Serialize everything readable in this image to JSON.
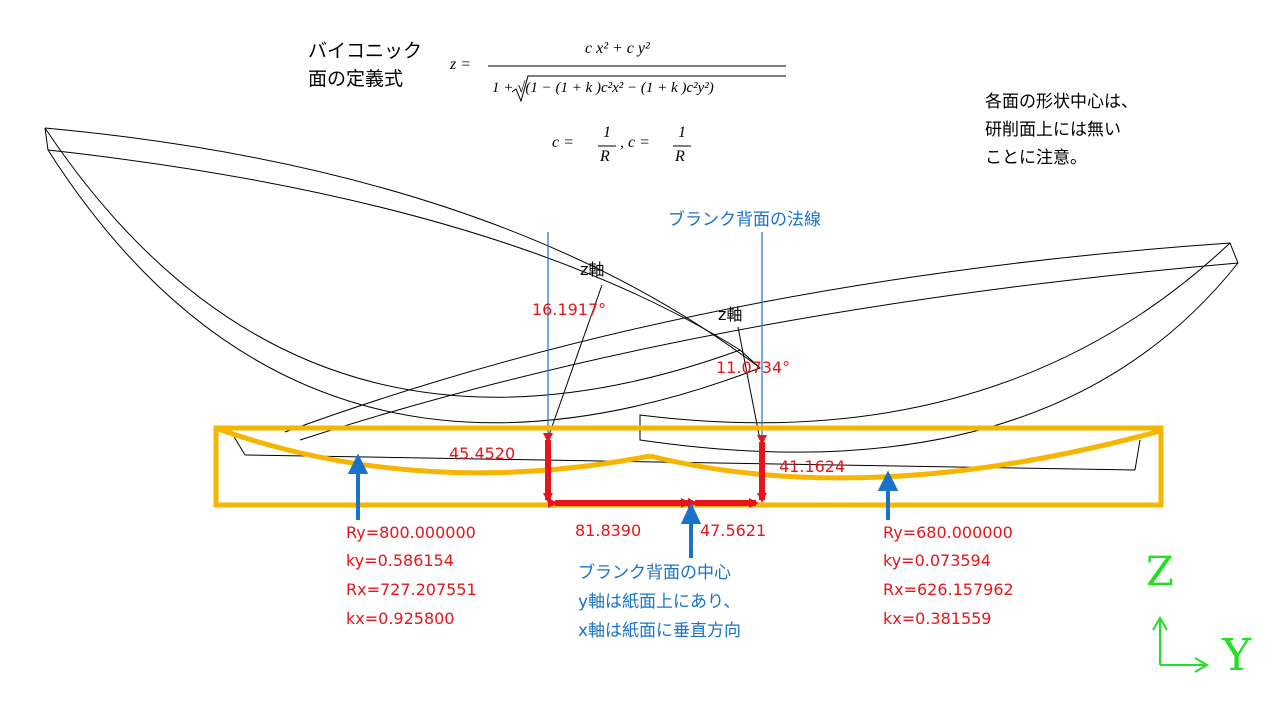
{
  "formula": {
    "title_line1": "バイコニック",
    "title_line2": "面の定義式",
    "lhs": "z  =",
    "numerator": "c x² + c y²",
    "denominator": "1 + √(1 − (1 + k )c²x² − (1 + k )c²y²)",
    "cx_label": "c  =",
    "cx_num": "1",
    "cx_den": "R",
    "cy_label": ", c  =",
    "cy_num": "1",
    "cy_den": "R"
  },
  "note": {
    "line1": "各面の形状中心は、",
    "line2": "研削面上には無い",
    "line3": "ことに注意。"
  },
  "normal_label": "ブランク背面の法線",
  "axis_labels": {
    "z1": "z軸",
    "z2": "z軸"
  },
  "angles": {
    "left": "16.1917°",
    "right": "11.0734°"
  },
  "heights": {
    "left": "45.4520",
    "right": "41.1624"
  },
  "widths": {
    "left": "81.8390",
    "right": "47.5621"
  },
  "left_params": {
    "ry": "Ry=800.000000",
    "ky": "ky=0.586154",
    "rx": "Rx=727.207551",
    "kx": "kx=0.925800"
  },
  "right_params": {
    "ry": "Ry=680.000000",
    "ky": "ky=0.073594",
    "rx": "Rx=626.157962",
    "kx": "kx=0.381559"
  },
  "center_note": {
    "line1": "ブランク背面の中心",
    "line2": "y軸は紙面上にあり、",
    "line3": "x軸は紙面に垂直方向"
  },
  "coord_labels": {
    "z": "Z",
    "y": "Y"
  },
  "colors": {
    "blank": "#f7b500",
    "dimension": "#e8141b",
    "annotation": "#1a73c8",
    "axes": "#22e022",
    "outline": "#000000"
  }
}
